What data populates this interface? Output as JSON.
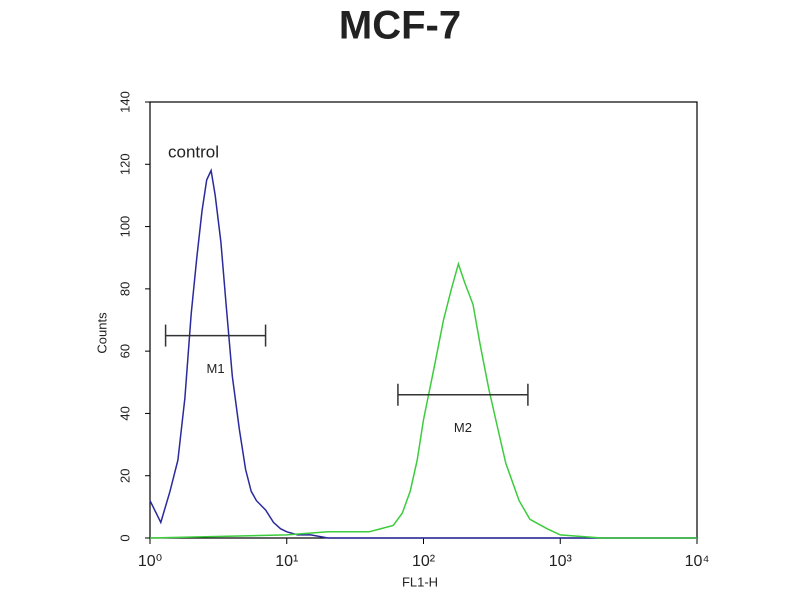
{
  "chart_data": {
    "type": "line",
    "title": "MCF-7",
    "x_label": "FL1-H",
    "y_label": "Counts",
    "log_x": true,
    "xlim": [
      1,
      10000
    ],
    "xticks": [
      {
        "value": 1,
        "label": "10⁰"
      },
      {
        "value": 10,
        "label": "10¹"
      },
      {
        "value": 100,
        "label": "10²"
      },
      {
        "value": 1000,
        "label": "10³"
      },
      {
        "value": 10000,
        "label": "10⁴"
      }
    ],
    "ylim": [
      0,
      140
    ],
    "yticks": [
      0,
      20,
      40,
      60,
      80,
      100,
      120,
      140
    ],
    "annotations": [
      "control"
    ],
    "markers": [
      {
        "label": "M1",
        "range": [
          1.3,
          7
        ],
        "y": 65
      },
      {
        "label": "M2",
        "range": [
          65,
          580
        ],
        "y": 46
      }
    ],
    "series": [
      {
        "name": "control",
        "color": "#2a2a9c",
        "x": [
          1,
          1.2,
          1.4,
          1.6,
          1.8,
          2,
          2.2,
          2.4,
          2.6,
          2.8,
          3,
          3.3,
          3.6,
          4,
          4.5,
          5,
          5.5,
          6,
          7,
          8,
          9,
          10,
          12,
          15,
          20,
          30,
          50,
          100,
          1000,
          10000
        ],
        "values": [
          12,
          5,
          15,
          25,
          45,
          72,
          90,
          105,
          115,
          118,
          110,
          95,
          75,
          52,
          35,
          22,
          15,
          12,
          9,
          5,
          3,
          2,
          1,
          1,
          0,
          0,
          0,
          0,
          0,
          0
        ]
      },
      {
        "color": "#3ccc3c",
        "x": [
          1,
          10,
          20,
          40,
          60,
          70,
          80,
          90,
          100,
          120,
          140,
          160,
          180,
          200,
          230,
          260,
          300,
          350,
          400,
          500,
          600,
          800,
          1000,
          2000,
          10000
        ],
        "values": [
          0,
          1,
          2,
          2,
          4,
          8,
          15,
          25,
          38,
          55,
          70,
          80,
          88,
          82,
          75,
          62,
          48,
          35,
          24,
          12,
          6,
          3,
          1,
          0,
          0
        ]
      }
    ]
  }
}
